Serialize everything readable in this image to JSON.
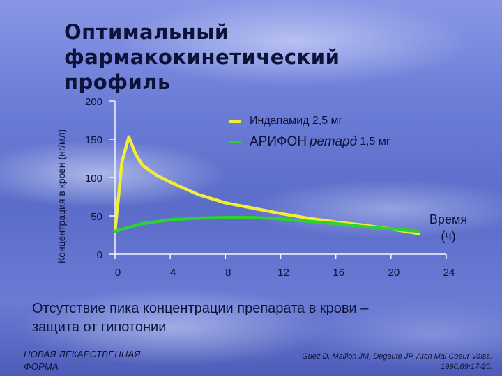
{
  "slide": {
    "title_line1": "Оптимальный фармакокинетический",
    "title_line2": "профиль",
    "subtitle_line1": "Отсутствие пика концентрации препарата в крови –",
    "subtitle_line2": "защита от гипотонии",
    "footer_left_line1": "НОВАЯ ЛЕКАРСТВЕННАЯ",
    "footer_left_line2": "ФОРМА",
    "footer_right_line1": "Guez D, Mallion JM, Degaute JP. Arch Mal Coeur Vaiss.",
    "footer_right_line2": "1996;89:17-25."
  },
  "legend": {
    "indapamide": "Индапамид 2,5 мг",
    "arifon_name": "АРИФОН",
    "arifon_form": "ретард",
    "arifon_dose": "1,5 мг"
  },
  "chart_data": {
    "type": "line",
    "ylabel": "Концентрация в крови (нг/мл)",
    "xlabel_line1": "Время",
    "xlabel_line2": "(ч)",
    "xlim": [
      0,
      24
    ],
    "ylim": [
      0,
      200
    ],
    "x_ticks": [
      "0",
      "4",
      "8",
      "12",
      "16",
      "20",
      "24"
    ],
    "y_ticks": [
      "0",
      "50",
      "100",
      "150",
      "200"
    ],
    "series": [
      {
        "name": "Индапамид 2,5 мг",
        "color": "#f2ec3a",
        "x": [
          0,
          0.5,
          1,
          1.5,
          2,
          3,
          4,
          6,
          8,
          10,
          12,
          14,
          16,
          18,
          20,
          22
        ],
        "y": [
          30,
          120,
          153,
          130,
          116,
          103,
          94,
          78,
          67,
          60,
          53,
          47,
          42,
          38,
          33,
          27
        ]
      },
      {
        "name": "АРИФОН ретард 1,5 мг",
        "color": "#2fd12f",
        "x": [
          0,
          2,
          4,
          6,
          8,
          10,
          12,
          14,
          16,
          18,
          20,
          22
        ],
        "y": [
          30,
          40,
          45,
          47,
          48,
          48,
          46,
          43,
          40,
          36,
          33,
          30
        ]
      }
    ]
  }
}
